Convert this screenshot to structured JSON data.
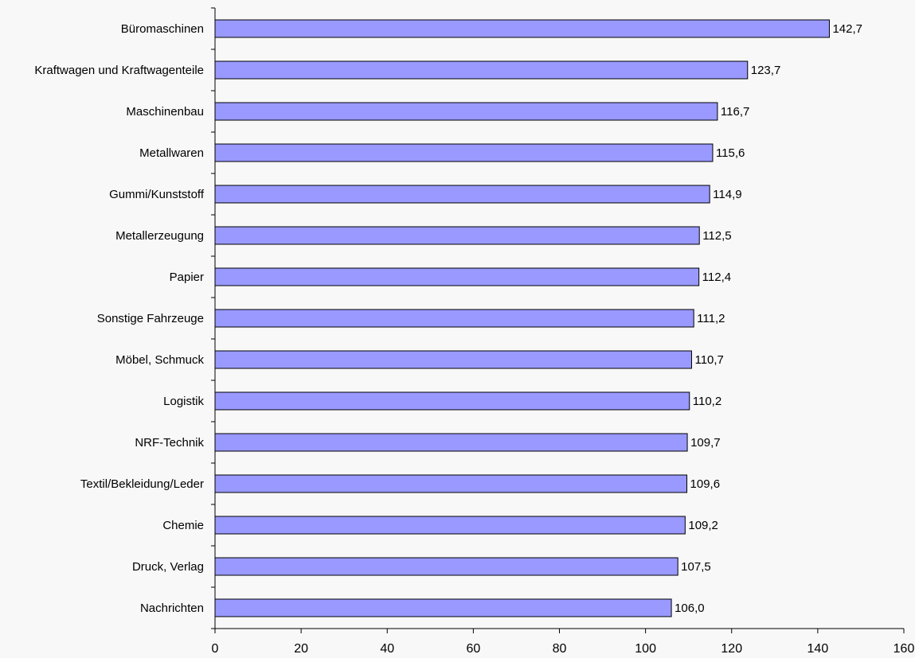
{
  "chart_data": {
    "type": "bar",
    "orientation": "horizontal",
    "title": "",
    "xlabel": "",
    "ylabel": "",
    "categories": [
      "Büromaschinen",
      "Kraftwagen und Kraftwagenteile",
      "Maschinenbau",
      "Metallwaren",
      "Gummi/Kunststoff",
      "Metallerzeugung",
      "Papier",
      "Sonstige Fahrzeuge",
      "Möbel, Schmuck",
      "Logistik",
      "NRF-Technik",
      "Textil/Bekleidung/Leder",
      "Chemie",
      "Druck, Verlag",
      "Nachrichten"
    ],
    "values": [
      142.7,
      123.7,
      116.7,
      115.6,
      114.9,
      112.5,
      112.4,
      111.2,
      110.7,
      110.2,
      109.7,
      109.6,
      109.2,
      107.5,
      106.0
    ],
    "value_labels": [
      "142,7",
      "123,7",
      "116,7",
      "115,6",
      "114,9",
      "112,5",
      "112,4",
      "111,2",
      "110,7",
      "110,2",
      "109,7",
      "109,6",
      "109,2",
      "107,5",
      "106,0"
    ],
    "xlim": [
      0,
      160
    ],
    "x_ticks": [
      0,
      20,
      40,
      60,
      80,
      100,
      120,
      140,
      160
    ],
    "x_tick_labels": [
      "0",
      "20",
      "40",
      "60",
      "80",
      "100",
      "120",
      "140",
      "160"
    ],
    "grid": false,
    "legend": "none",
    "colors": {
      "bar_fill": "#9999ff",
      "bar_stroke": "#000000",
      "axis": "#000000",
      "background": "#f8f8f8"
    }
  }
}
